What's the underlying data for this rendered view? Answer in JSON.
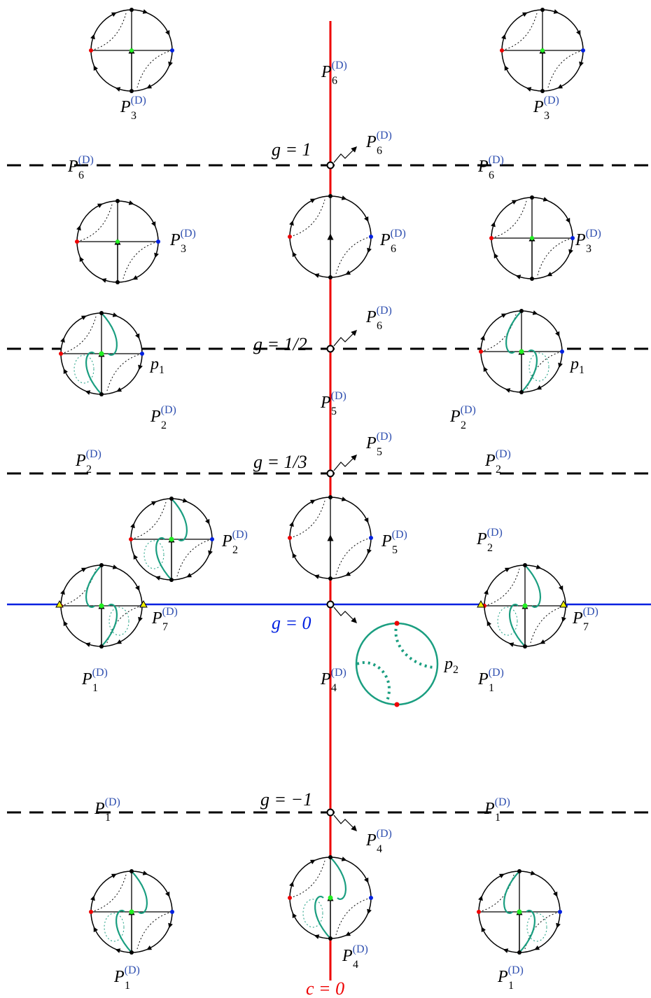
{
  "labels": [
    {
      "base": "P",
      "sub": "3",
      "sup": "(D)"
    },
    {
      "base": "P",
      "sub": "6",
      "sup": "(D)"
    },
    {
      "base": "P",
      "sub": "3",
      "sup": "(D)"
    },
    {
      "base": "P",
      "sub": "6",
      "sup": "(D)"
    },
    {
      "base": "P",
      "sub": "6",
      "sup": "(D)"
    },
    {
      "base": "P",
      "sub": "6",
      "sup": "(D)"
    },
    {
      "base": "P",
      "sub": "3",
      "sup": "(D)"
    },
    {
      "base": "P",
      "sub": "6",
      "sup": "(D)"
    },
    {
      "base": "P",
      "sub": "3",
      "sup": "(D)"
    },
    {
      "base": "P",
      "sub": "6",
      "sup": "(D)"
    },
    {
      "base": "P",
      "sub": "2",
      "sup": "(D)"
    },
    {
      "base": "P",
      "sub": "5",
      "sup": "(D)"
    },
    {
      "base": "P",
      "sub": "2",
      "sup": "(D)"
    },
    {
      "base": "P",
      "sub": "5",
      "sup": "(D)"
    },
    {
      "base": "P",
      "sub": "2",
      "sup": "(D)"
    },
    {
      "base": "P",
      "sub": "2",
      "sup": "(D)"
    },
    {
      "base": "P",
      "sub": "2",
      "sup": "(D)"
    },
    {
      "base": "P",
      "sub": "5",
      "sup": "(D)"
    },
    {
      "base": "P",
      "sub": "2",
      "sup": "(D)"
    },
    {
      "base": "P",
      "sub": "7",
      "sup": "(D)"
    },
    {
      "base": "P",
      "sub": "7",
      "sup": "(D)"
    },
    {
      "base": "P",
      "sub": "1",
      "sup": "(D)"
    },
    {
      "base": "P",
      "sub": "4",
      "sup": "(D)"
    },
    {
      "base": "P",
      "sub": "1",
      "sup": "(D)"
    },
    {
      "base": "P",
      "sub": "1",
      "sup": "(D)"
    },
    {
      "base": "P",
      "sub": "1",
      "sup": "(D)"
    },
    {
      "base": "P",
      "sub": "4",
      "sup": "(D)"
    },
    {
      "base": "P",
      "sub": "4",
      "sup": "(D)"
    },
    {
      "base": "P",
      "sub": "1",
      "sup": "(D)"
    },
    {
      "base": "P",
      "sub": "1",
      "sup": "(D)"
    }
  ],
  "point_labels": [
    {
      "base": "p",
      "sub": "1"
    },
    {
      "base": "p",
      "sub": "1"
    },
    {
      "base": "p",
      "sub": "2"
    }
  ],
  "line_labels": [
    "g = 1",
    "g = 1/2",
    "g = 1/3",
    "g = 0",
    "g = −1"
  ],
  "axis_label": "c = 0"
}
